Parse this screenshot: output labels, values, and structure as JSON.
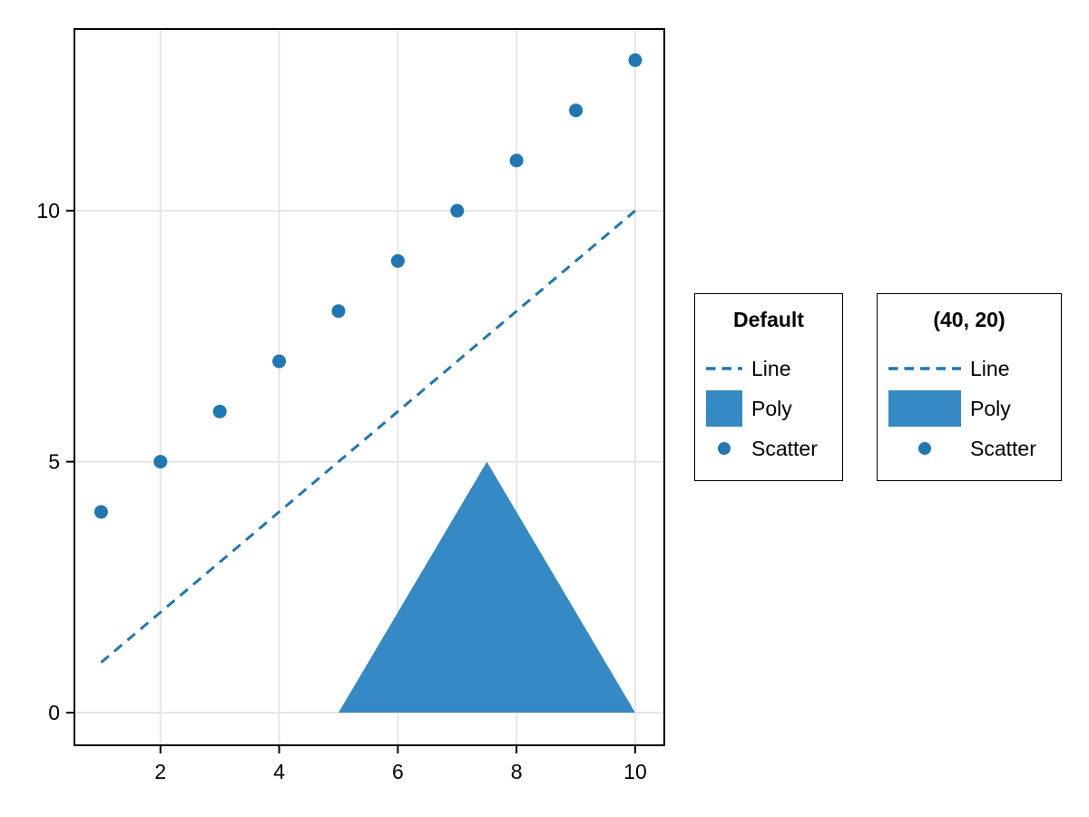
{
  "figure": {
    "background": "#ffffff"
  },
  "colors": {
    "line_scatter_blue": "#1f77b4",
    "poly_blue": "#3589c4",
    "grid": "#e6e6e6",
    "spine": "#000000",
    "text": "#000000",
    "legend_border": "#000000",
    "legend_background": "#ffffff"
  },
  "chart_data": {
    "type": "mixed",
    "title": "",
    "xlabel": "",
    "ylabel": "",
    "xlim": [
      0.55,
      10.49
    ],
    "ylim": [
      -0.65,
      13.62
    ],
    "xticks": [
      2,
      4,
      6,
      8,
      10
    ],
    "yticks": [
      0,
      5,
      10
    ],
    "grid": true,
    "series": [
      {
        "name": "Line",
        "type": "line",
        "linestyle": "dashed",
        "color": "#1f77b4",
        "x": [
          1,
          2,
          3,
          4,
          5,
          6,
          7,
          8,
          9,
          10
        ],
        "y": [
          1,
          2,
          3,
          4,
          5,
          6,
          7,
          8,
          9,
          10
        ]
      },
      {
        "name": "Poly",
        "type": "polygon",
        "color": "#3589c4",
        "points": [
          [
            5,
            0
          ],
          [
            10,
            0
          ],
          [
            7.5,
            5
          ]
        ]
      },
      {
        "name": "Scatter",
        "type": "scatter",
        "color": "#1f77b4",
        "x": [
          1,
          2,
          3,
          4,
          5,
          6,
          7,
          8,
          9,
          10
        ],
        "y": [
          4,
          5,
          6,
          7,
          8,
          9,
          10,
          11,
          12,
          13
        ]
      }
    ]
  },
  "legends": [
    {
      "title": "Default",
      "patch_width": 40,
      "patch_height": 40,
      "items": [
        {
          "label": "Line",
          "marker": "dashed-line"
        },
        {
          "label": "Poly",
          "marker": "filled-rect"
        },
        {
          "label": "Scatter",
          "marker": "dot"
        }
      ]
    },
    {
      "title": "(40, 20)",
      "patch_width": 80,
      "patch_height": 40,
      "items": [
        {
          "label": "Line",
          "marker": "dashed-line"
        },
        {
          "label": "Poly",
          "marker": "filled-rect"
        },
        {
          "label": "Scatter",
          "marker": "dot"
        }
      ]
    }
  ]
}
